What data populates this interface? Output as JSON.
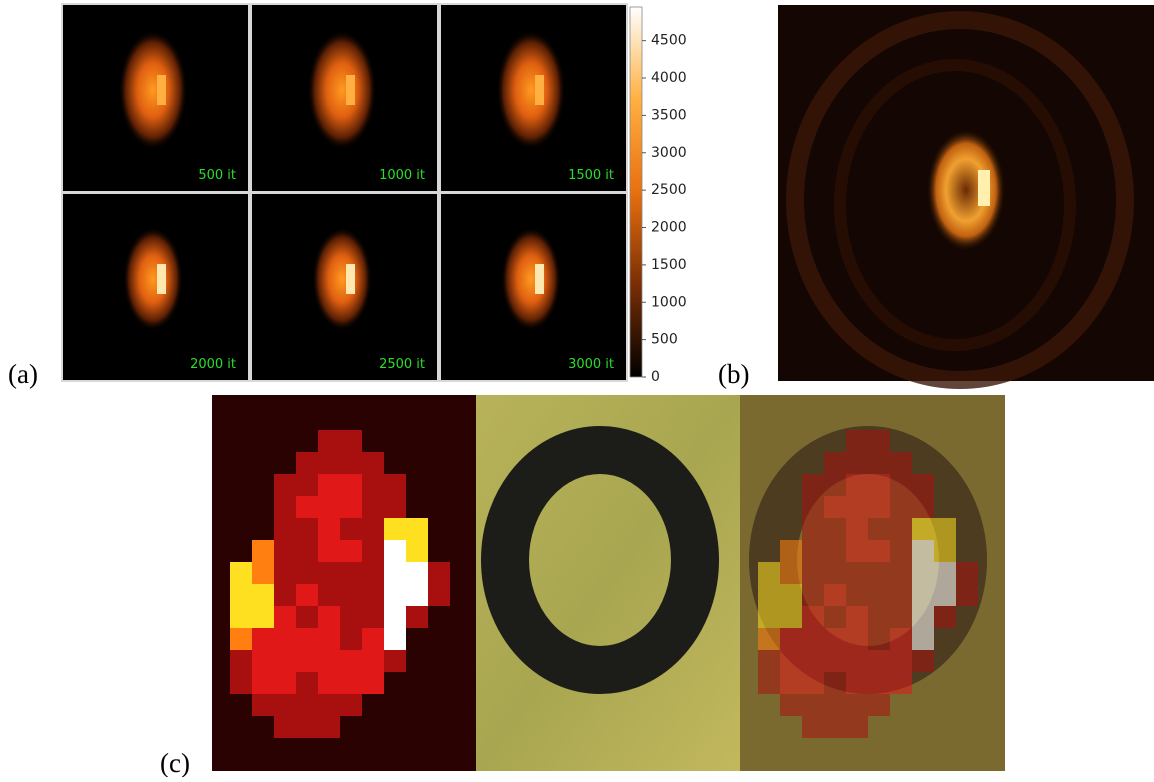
{
  "panels": {
    "a": {
      "label": "(a)",
      "tiles": [
        "500 it",
        "1000 it",
        "1500 it",
        "2000 it",
        "2500 it",
        "3000 it"
      ],
      "colorbar": {
        "lim": [
          0,
          4950
        ],
        "ticks": [
          0,
          500,
          1000,
          1500,
          2000,
          2500,
          3000,
          3500,
          4000,
          4500
        ]
      }
    },
    "b": {
      "label": "(b)"
    },
    "c": {
      "label": "(c)"
    }
  }
}
